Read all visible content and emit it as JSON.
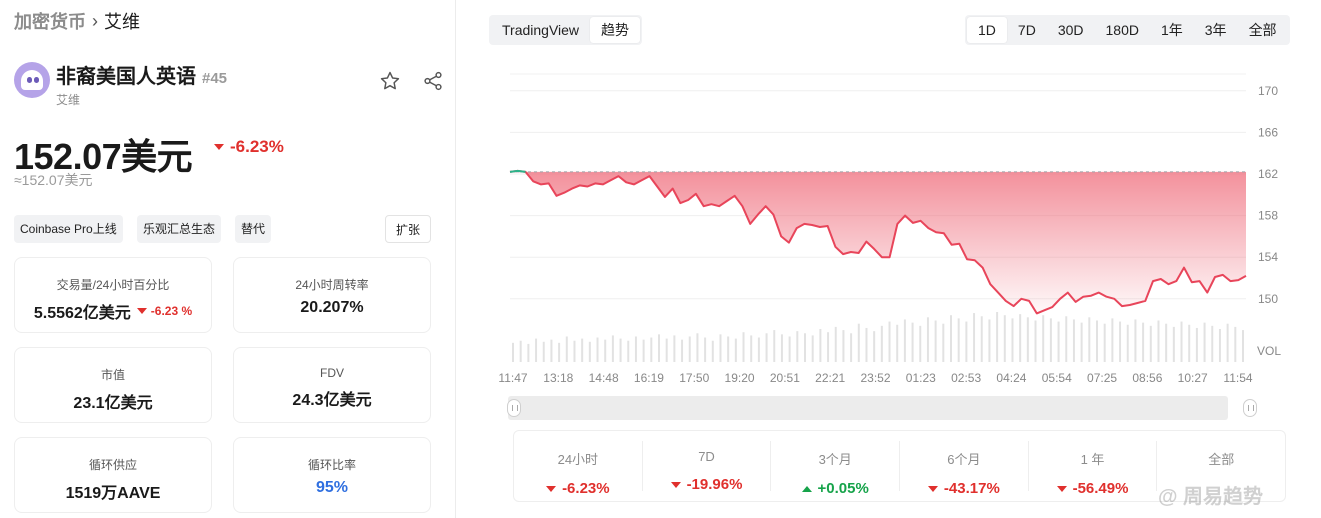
{
  "breadcrumb": {
    "root": "加密货币",
    "current": "艾维"
  },
  "coin": {
    "name": "非裔美国人英语",
    "rank": "#45",
    "symbol_label": "艾维",
    "price": "152.07美元",
    "change": "-6.23%",
    "approx": "≈152.07美元"
  },
  "tags": [
    "Coinbase Pro上线",
    "乐观汇总生态",
    "替代"
  ],
  "expand_label": "扩张",
  "stats": {
    "volume": {
      "label": "交易量/24小时百分比",
      "value": "5.5562亿美元",
      "change": "-6.23 %"
    },
    "turnover": {
      "label": "24小时周转率",
      "value": "20.207%"
    },
    "market_cap": {
      "label": "市值",
      "value": "23.1亿美元"
    },
    "fdv": {
      "label": "FDV",
      "value": "24.3亿美元"
    },
    "circ_supply": {
      "label": "循环供应",
      "value": "1519万AAVE"
    },
    "circ_ratio": {
      "label": "循环比率",
      "value": "95%"
    }
  },
  "view_tabs": [
    "TradingView",
    "趋势"
  ],
  "range_tabs": [
    "1D",
    "7D",
    "30D",
    "180D",
    "1年",
    "3年",
    "全部"
  ],
  "range_active": "1D",
  "chart_data": {
    "type": "area",
    "title": "",
    "xlabel": "",
    "ylabel": "",
    "ylim": [
      147,
      172
    ],
    "y_ticks": [
      "170",
      "166",
      "162",
      "158",
      "154",
      "150"
    ],
    "x_ticks": [
      "11:47",
      "13:18",
      "14:48",
      "16:19",
      "17:50",
      "19:20",
      "20:51",
      "22:21",
      "23:52",
      "01:23",
      "02:53",
      "04:24",
      "05:54",
      "07:25",
      "08:56",
      "10:27",
      "11:54"
    ],
    "volume_label": "VOL",
    "reference_price": 162.2,
    "series": [
      {
        "values": [
          162.2,
          162.3,
          162.2,
          161.3,
          161.0,
          161.1,
          159.9,
          160.2,
          160.6,
          160.9,
          160.8,
          161.1,
          161.0,
          161.4,
          161.8,
          161.2,
          161.0,
          161.4,
          161.8,
          160.8,
          159.8,
          160.6,
          159.2,
          159.5,
          160.1,
          158.9,
          159.1,
          158.9,
          159.4,
          159.9,
          158.9,
          157.2,
          158.1,
          158.9,
          158.1,
          156.0,
          155.4,
          156.8,
          157.2,
          157.1,
          156.9,
          157.0,
          155.0,
          154.3,
          154.5,
          154.4,
          155.5,
          154.8,
          154.0,
          154.0,
          157.2,
          158.0,
          157.3,
          157.5,
          156.8,
          156.4,
          156.3,
          155.2,
          155.3,
          153.8,
          153.7,
          153.0,
          151.4,
          150.6,
          149.8,
          149.3,
          150.0,
          149.8,
          148.6,
          148.9,
          149.2,
          150.0,
          150.6,
          149.7,
          150.2,
          150.3,
          150.6,
          150.2,
          150.0,
          149.3,
          149.4,
          149.6,
          149.8,
          151.7,
          151.9,
          151.4,
          151.7,
          153.0,
          151.6,
          151.7,
          150.6,
          152.1,
          152.3,
          151.7,
          151.8,
          152.2
        ]
      }
    ],
    "volume": [
      18,
      20,
      17,
      22,
      19,
      21,
      18,
      24,
      20,
      22,
      19,
      23,
      21,
      25,
      22,
      20,
      24,
      21,
      23,
      26,
      22,
      25,
      21,
      24,
      27,
      23,
      20,
      26,
      24,
      22,
      28,
      25,
      23,
      27,
      30,
      26,
      24,
      29,
      27,
      25,
      31,
      28,
      33,
      30,
      27,
      36,
      32,
      29,
      34,
      38,
      35,
      40,
      37,
      34,
      42,
      39,
      36,
      44,
      41,
      38,
      46,
      43,
      40,
      47,
      44,
      41,
      45,
      42,
      39,
      44,
      41,
      38,
      43,
      40,
      37,
      42,
      39,
      36,
      41,
      38,
      35,
      40,
      37,
      34,
      39,
      36,
      33,
      38,
      35,
      32,
      37,
      34,
      31,
      36,
      33,
      30
    ]
  },
  "performance": [
    {
      "label": "24小时",
      "value": "-6.23%",
      "dir": "down"
    },
    {
      "label": "7D",
      "value": "-19.96%",
      "dir": "down"
    },
    {
      "label": "3个月",
      "value": "+0.05%",
      "dir": "up"
    },
    {
      "label": "6个月",
      "value": "-43.17%",
      "dir": "down"
    },
    {
      "label": "1 年",
      "value": "-56.49%",
      "dir": "down"
    },
    {
      "label": "全部",
      "value": "",
      "dir": "none"
    }
  ],
  "watermark": "@ 周易趋势",
  "colors": {
    "down": "#e0302d",
    "up": "#16a34a",
    "accent_blue": "#2f6fe0",
    "line": "#e8455a",
    "start_line": "#2bb38a"
  }
}
